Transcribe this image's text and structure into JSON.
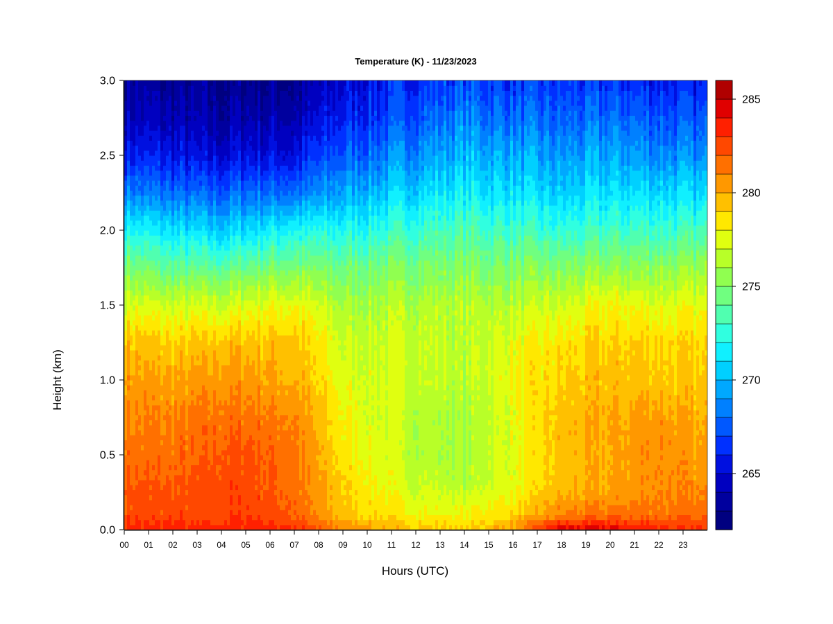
{
  "chart_data": {
    "type": "heatmap",
    "title": "Temperature (K) - 11/23/2023",
    "xlabel": "Hours (UTC)",
    "ylabel": "Height (km)",
    "xlim": [
      0,
      24
    ],
    "ylim": [
      0.0,
      3.0
    ],
    "x_ticks": [
      "00",
      "01",
      "02",
      "03",
      "04",
      "05",
      "06",
      "07",
      "08",
      "09",
      "10",
      "11",
      "12",
      "13",
      "14",
      "15",
      "16",
      "17",
      "18",
      "19",
      "20",
      "21",
      "22",
      "23"
    ],
    "y_ticks": [
      "0.0",
      "0.5",
      "1.0",
      "1.5",
      "2.0",
      "2.5",
      "3.0"
    ],
    "colorbar": {
      "range": [
        262,
        286
      ],
      "step": 1,
      "tick_values": [
        265,
        270,
        275,
        280,
        285
      ],
      "tick_labels": [
        "265",
        "270",
        "275",
        "280",
        "285"
      ],
      "palette": [
        "#000080",
        "#00009e",
        "#0000c0",
        "#0010e0",
        "#0030ff",
        "#0058ff",
        "#0080ff",
        "#00a8ff",
        "#00d0ff",
        "#10f0ff",
        "#30ffe0",
        "#50ffb0",
        "#70ff80",
        "#90ff50",
        "#b8ff28",
        "#e0ff10",
        "#ffe800",
        "#ffc000",
        "#ff9800",
        "#ff7000",
        "#ff4800",
        "#ff2000",
        "#e00000",
        "#b00000",
        "#800000"
      ]
    },
    "heights_km": [
      0.0,
      0.1,
      0.3,
      0.5,
      0.75,
      1.0,
      1.25,
      1.5,
      1.75,
      2.0,
      2.25,
      2.5,
      2.75,
      3.0
    ],
    "profiles": [
      {
        "hour": 0,
        "temps": [
          283.5,
          282.5,
          282.0,
          281.5,
          281.0,
          280.5,
          279.5,
          277.5,
          275.0,
          272.0,
          268.5,
          266.0,
          264.5,
          263.5
        ]
      },
      {
        "hour": 2,
        "temps": [
          283.5,
          282.5,
          282.0,
          281.5,
          281.0,
          280.0,
          279.0,
          277.0,
          274.0,
          271.0,
          268.0,
          265.5,
          264.0,
          263.0
        ]
      },
      {
        "hour": 4,
        "temps": [
          283.5,
          282.5,
          282.5,
          282.0,
          281.5,
          280.5,
          279.5,
          277.0,
          274.0,
          270.5,
          267.5,
          265.0,
          263.5,
          263.0
        ]
      },
      {
        "hour": 5,
        "temps": [
          283.5,
          283.0,
          282.5,
          282.5,
          281.5,
          280.5,
          279.5,
          277.5,
          274.5,
          271.0,
          268.0,
          265.5,
          264.0,
          263.0
        ]
      },
      {
        "hour": 7,
        "temps": [
          283.5,
          282.0,
          281.5,
          281.5,
          281.0,
          280.0,
          279.5,
          278.0,
          275.0,
          272.0,
          268.0,
          265.5,
          264.0,
          263.0
        ]
      },
      {
        "hour": 9,
        "temps": [
          281.0,
          279.5,
          279.0,
          278.5,
          278.0,
          277.5,
          277.0,
          276.0,
          274.5,
          272.0,
          269.5,
          267.5,
          266.0,
          265.0
        ]
      },
      {
        "hour": 12,
        "temps": [
          279.5,
          278.0,
          277.0,
          276.5,
          276.5,
          277.0,
          277.0,
          276.5,
          275.0,
          273.0,
          271.0,
          269.0,
          267.5,
          266.5
        ]
      },
      {
        "hour": 14,
        "temps": [
          279.0,
          278.0,
          276.5,
          276.0,
          276.0,
          276.5,
          276.5,
          276.5,
          275.0,
          273.5,
          271.5,
          270.0,
          268.5,
          267.0
        ]
      },
      {
        "hour": 16,
        "temps": [
          280.5,
          279.0,
          277.5,
          277.5,
          277.5,
          278.0,
          277.5,
          276.5,
          275.0,
          273.0,
          271.0,
          269.5,
          268.0,
          266.5
        ]
      },
      {
        "hour": 18,
        "temps": [
          284.5,
          281.0,
          279.5,
          279.5,
          279.5,
          279.0,
          278.5,
          277.0,
          275.0,
          272.5,
          270.5,
          269.0,
          267.5,
          266.5
        ]
      },
      {
        "hour": 20,
        "temps": [
          284.5,
          281.5,
          280.0,
          280.0,
          280.0,
          279.5,
          279.0,
          278.0,
          275.5,
          273.0,
          271.0,
          269.5,
          268.0,
          266.5
        ]
      },
      {
        "hour": 22,
        "temps": [
          283.5,
          281.5,
          281.0,
          281.0,
          280.5,
          279.5,
          279.0,
          277.5,
          275.5,
          273.0,
          271.0,
          269.0,
          267.5,
          266.0
        ]
      },
      {
        "hour": 24,
        "temps": [
          283.0,
          281.5,
          280.5,
          280.0,
          279.5,
          279.0,
          278.5,
          277.5,
          275.5,
          273.0,
          270.5,
          268.5,
          267.0,
          265.5
        ]
      }
    ]
  }
}
